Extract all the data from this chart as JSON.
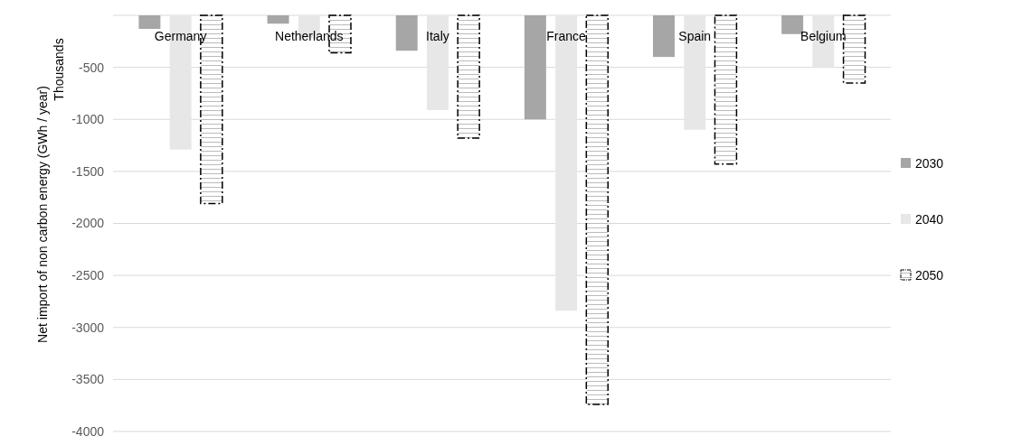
{
  "chart_data": {
    "type": "bar",
    "ylabel": "Net import of non carbon energy (GWh / year)",
    "annotations": [
      "Thousands"
    ],
    "categories": [
      "Germany",
      "Netherlands",
      "Italy",
      "France",
      "Spain",
      "Belgium"
    ],
    "series": [
      {
        "name": "2030",
        "color": "#a6a6a6",
        "values": [
          -130,
          -80,
          -340,
          -1000,
          -400,
          -180
        ]
      },
      {
        "name": "2040",
        "color": "#e7e7e7",
        "values": [
          -1290,
          -220,
          -910,
          -2840,
          -1100,
          -500
        ]
      },
      {
        "name": "2050",
        "color": "#000000",
        "line_style": "dashed",
        "values": [
          -1810,
          -360,
          -1180,
          -3740,
          -1430,
          -650
        ]
      }
    ],
    "ylim": [
      -4000,
      0
    ],
    "yticks": [
      {
        "value": 0,
        "label": null
      },
      -500,
      -1000,
      -1500,
      -2000,
      -2500,
      -3000,
      -3500,
      -4000
    ],
    "grid": "y",
    "legend": "right"
  }
}
